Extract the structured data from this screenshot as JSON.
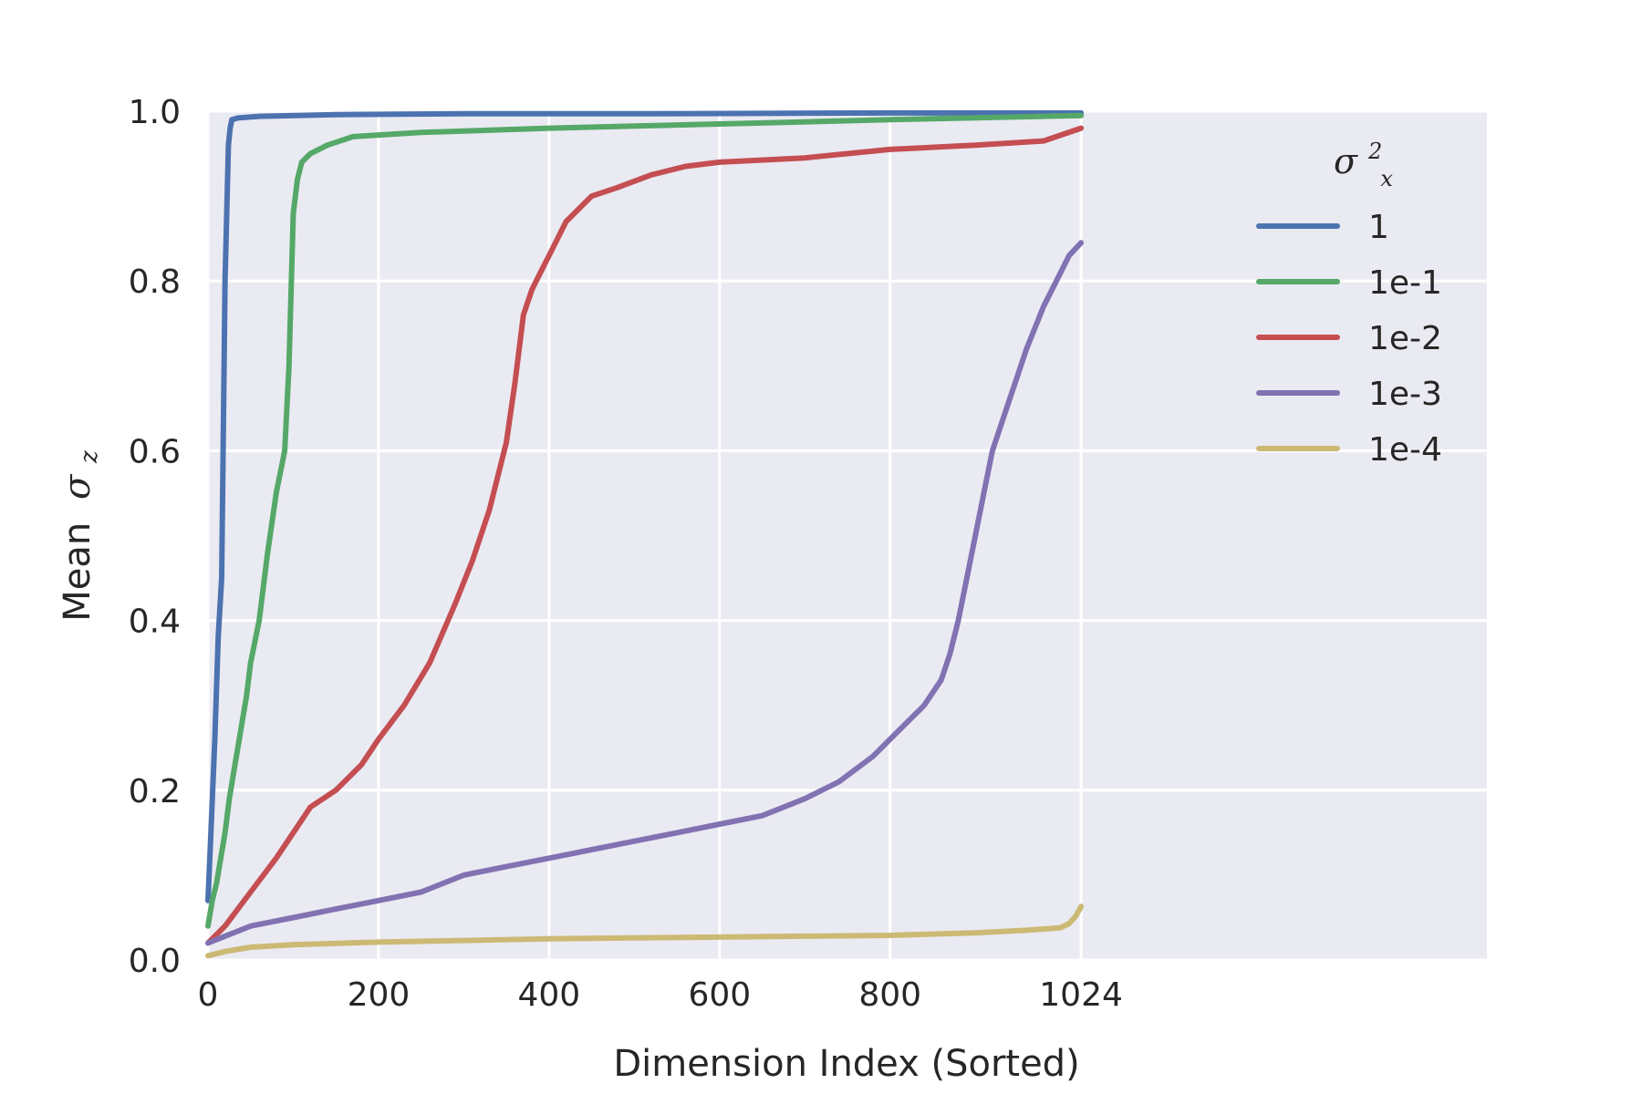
{
  "chart_data": {
    "type": "line",
    "xlabel": "Dimension Index (Sorted)",
    "ylabel_text": "Mean",
    "ylabel_symbol": "σ",
    "ylabel_subscript": "z",
    "xlim": [
      0,
      1500
    ],
    "ylim": [
      0.0,
      1.0
    ],
    "xticks": [
      0,
      200,
      400,
      600,
      800,
      1024
    ],
    "xtick_labels": [
      "0",
      "200",
      "400",
      "600",
      "800",
      "1024"
    ],
    "yticks": [
      0.0,
      0.2,
      0.4,
      0.6,
      0.8,
      1.0
    ],
    "ytick_labels": [
      "0.0",
      "0.2",
      "0.4",
      "0.6",
      "0.8",
      "1.0"
    ],
    "grid": true,
    "legend": {
      "placement": "right",
      "title_symbol": "σ",
      "title_superscript": "2",
      "title_subscript": "x"
    },
    "series": [
      {
        "name": "1",
        "color": "#4c72b0",
        "x": [
          0,
          3,
          8,
          12,
          16,
          20,
          24,
          26,
          28,
          35,
          60,
          150,
          300,
          500,
          800,
          1024
        ],
        "y": [
          0.07,
          0.14,
          0.26,
          0.38,
          0.45,
          0.8,
          0.96,
          0.98,
          0.99,
          0.992,
          0.994,
          0.996,
          0.997,
          0.997,
          0.998,
          0.998
        ]
      },
      {
        "name": "1e-1",
        "color": "#55a868",
        "x": [
          0,
          5,
          10,
          15,
          20,
          25,
          30,
          35,
          40,
          45,
          50,
          60,
          70,
          80,
          90,
          95,
          100,
          105,
          110,
          120,
          140,
          170,
          250,
          400,
          600,
          800,
          1024
        ],
        "y": [
          0.04,
          0.07,
          0.09,
          0.12,
          0.15,
          0.19,
          0.22,
          0.25,
          0.28,
          0.31,
          0.35,
          0.4,
          0.48,
          0.55,
          0.6,
          0.7,
          0.88,
          0.92,
          0.94,
          0.95,
          0.96,
          0.97,
          0.975,
          0.98,
          0.985,
          0.99,
          0.995
        ]
      },
      {
        "name": "1e-2",
        "color": "#c44e52",
        "x": [
          0,
          20,
          50,
          80,
          100,
          120,
          150,
          180,
          200,
          230,
          260,
          290,
          310,
          330,
          350,
          360,
          370,
          380,
          390,
          400,
          420,
          450,
          480,
          520,
          560,
          600,
          700,
          800,
          900,
          980,
          1024
        ],
        "y": [
          0.02,
          0.04,
          0.08,
          0.12,
          0.15,
          0.18,
          0.2,
          0.23,
          0.26,
          0.3,
          0.35,
          0.42,
          0.47,
          0.53,
          0.61,
          0.68,
          0.76,
          0.79,
          0.81,
          0.83,
          0.87,
          0.9,
          0.91,
          0.925,
          0.935,
          0.94,
          0.945,
          0.955,
          0.96,
          0.965,
          0.98
        ]
      },
      {
        "name": "1e-3",
        "color": "#8172b2",
        "x": [
          0,
          50,
          100,
          150,
          200,
          250,
          300,
          350,
          400,
          450,
          500,
          550,
          600,
          650,
          700,
          740,
          780,
          800,
          820,
          840,
          860,
          870,
          880,
          890,
          900,
          910,
          920,
          940,
          960,
          980,
          1000,
          1010,
          1024
        ],
        "y": [
          0.02,
          0.04,
          0.05,
          0.06,
          0.07,
          0.08,
          0.1,
          0.11,
          0.12,
          0.13,
          0.14,
          0.15,
          0.16,
          0.17,
          0.19,
          0.21,
          0.24,
          0.26,
          0.28,
          0.3,
          0.33,
          0.36,
          0.4,
          0.45,
          0.5,
          0.55,
          0.6,
          0.66,
          0.72,
          0.77,
          0.81,
          0.83,
          0.845
        ]
      },
      {
        "name": "1e-4",
        "color": "#ccb974",
        "x": [
          0,
          20,
          50,
          100,
          200,
          300,
          400,
          500,
          600,
          700,
          800,
          900,
          960,
          1000,
          1010,
          1018,
          1024
        ],
        "y": [
          0.005,
          0.01,
          0.015,
          0.018,
          0.021,
          0.023,
          0.025,
          0.026,
          0.027,
          0.028,
          0.029,
          0.032,
          0.035,
          0.038,
          0.043,
          0.052,
          0.063
        ]
      }
    ]
  }
}
